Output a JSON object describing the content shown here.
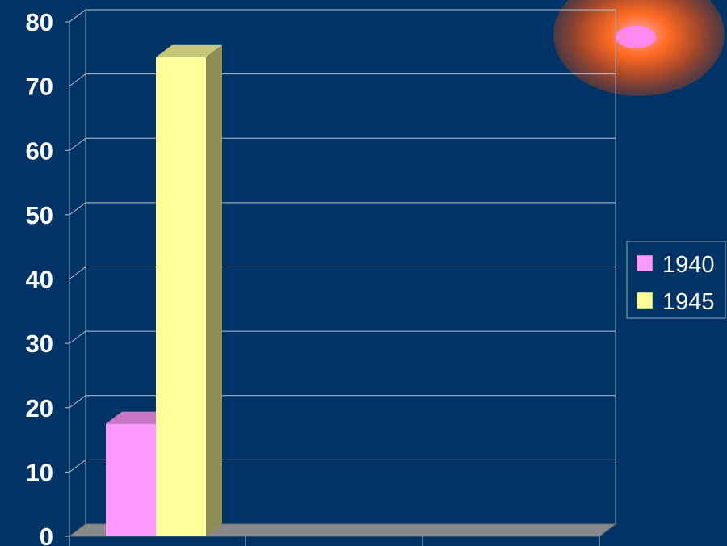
{
  "chart_data": {
    "type": "bar",
    "categories": [
      ""
    ],
    "series": [
      {
        "name": "1940",
        "values": [
          17.5
        ],
        "color": "#ff99ff"
      },
      {
        "name": "1945",
        "values": [
          74.5
        ],
        "color": "#ffff99"
      }
    ],
    "title": "",
    "xlabel": "",
    "ylabel": "",
    "ylim": [
      0,
      80
    ],
    "yticks": [
      "0",
      "10",
      "20",
      "30",
      "40",
      "50",
      "60",
      "70",
      "80"
    ],
    "grid": true,
    "legend_position": "right",
    "style": "3d-columns",
    "background_color": "#003366"
  }
}
